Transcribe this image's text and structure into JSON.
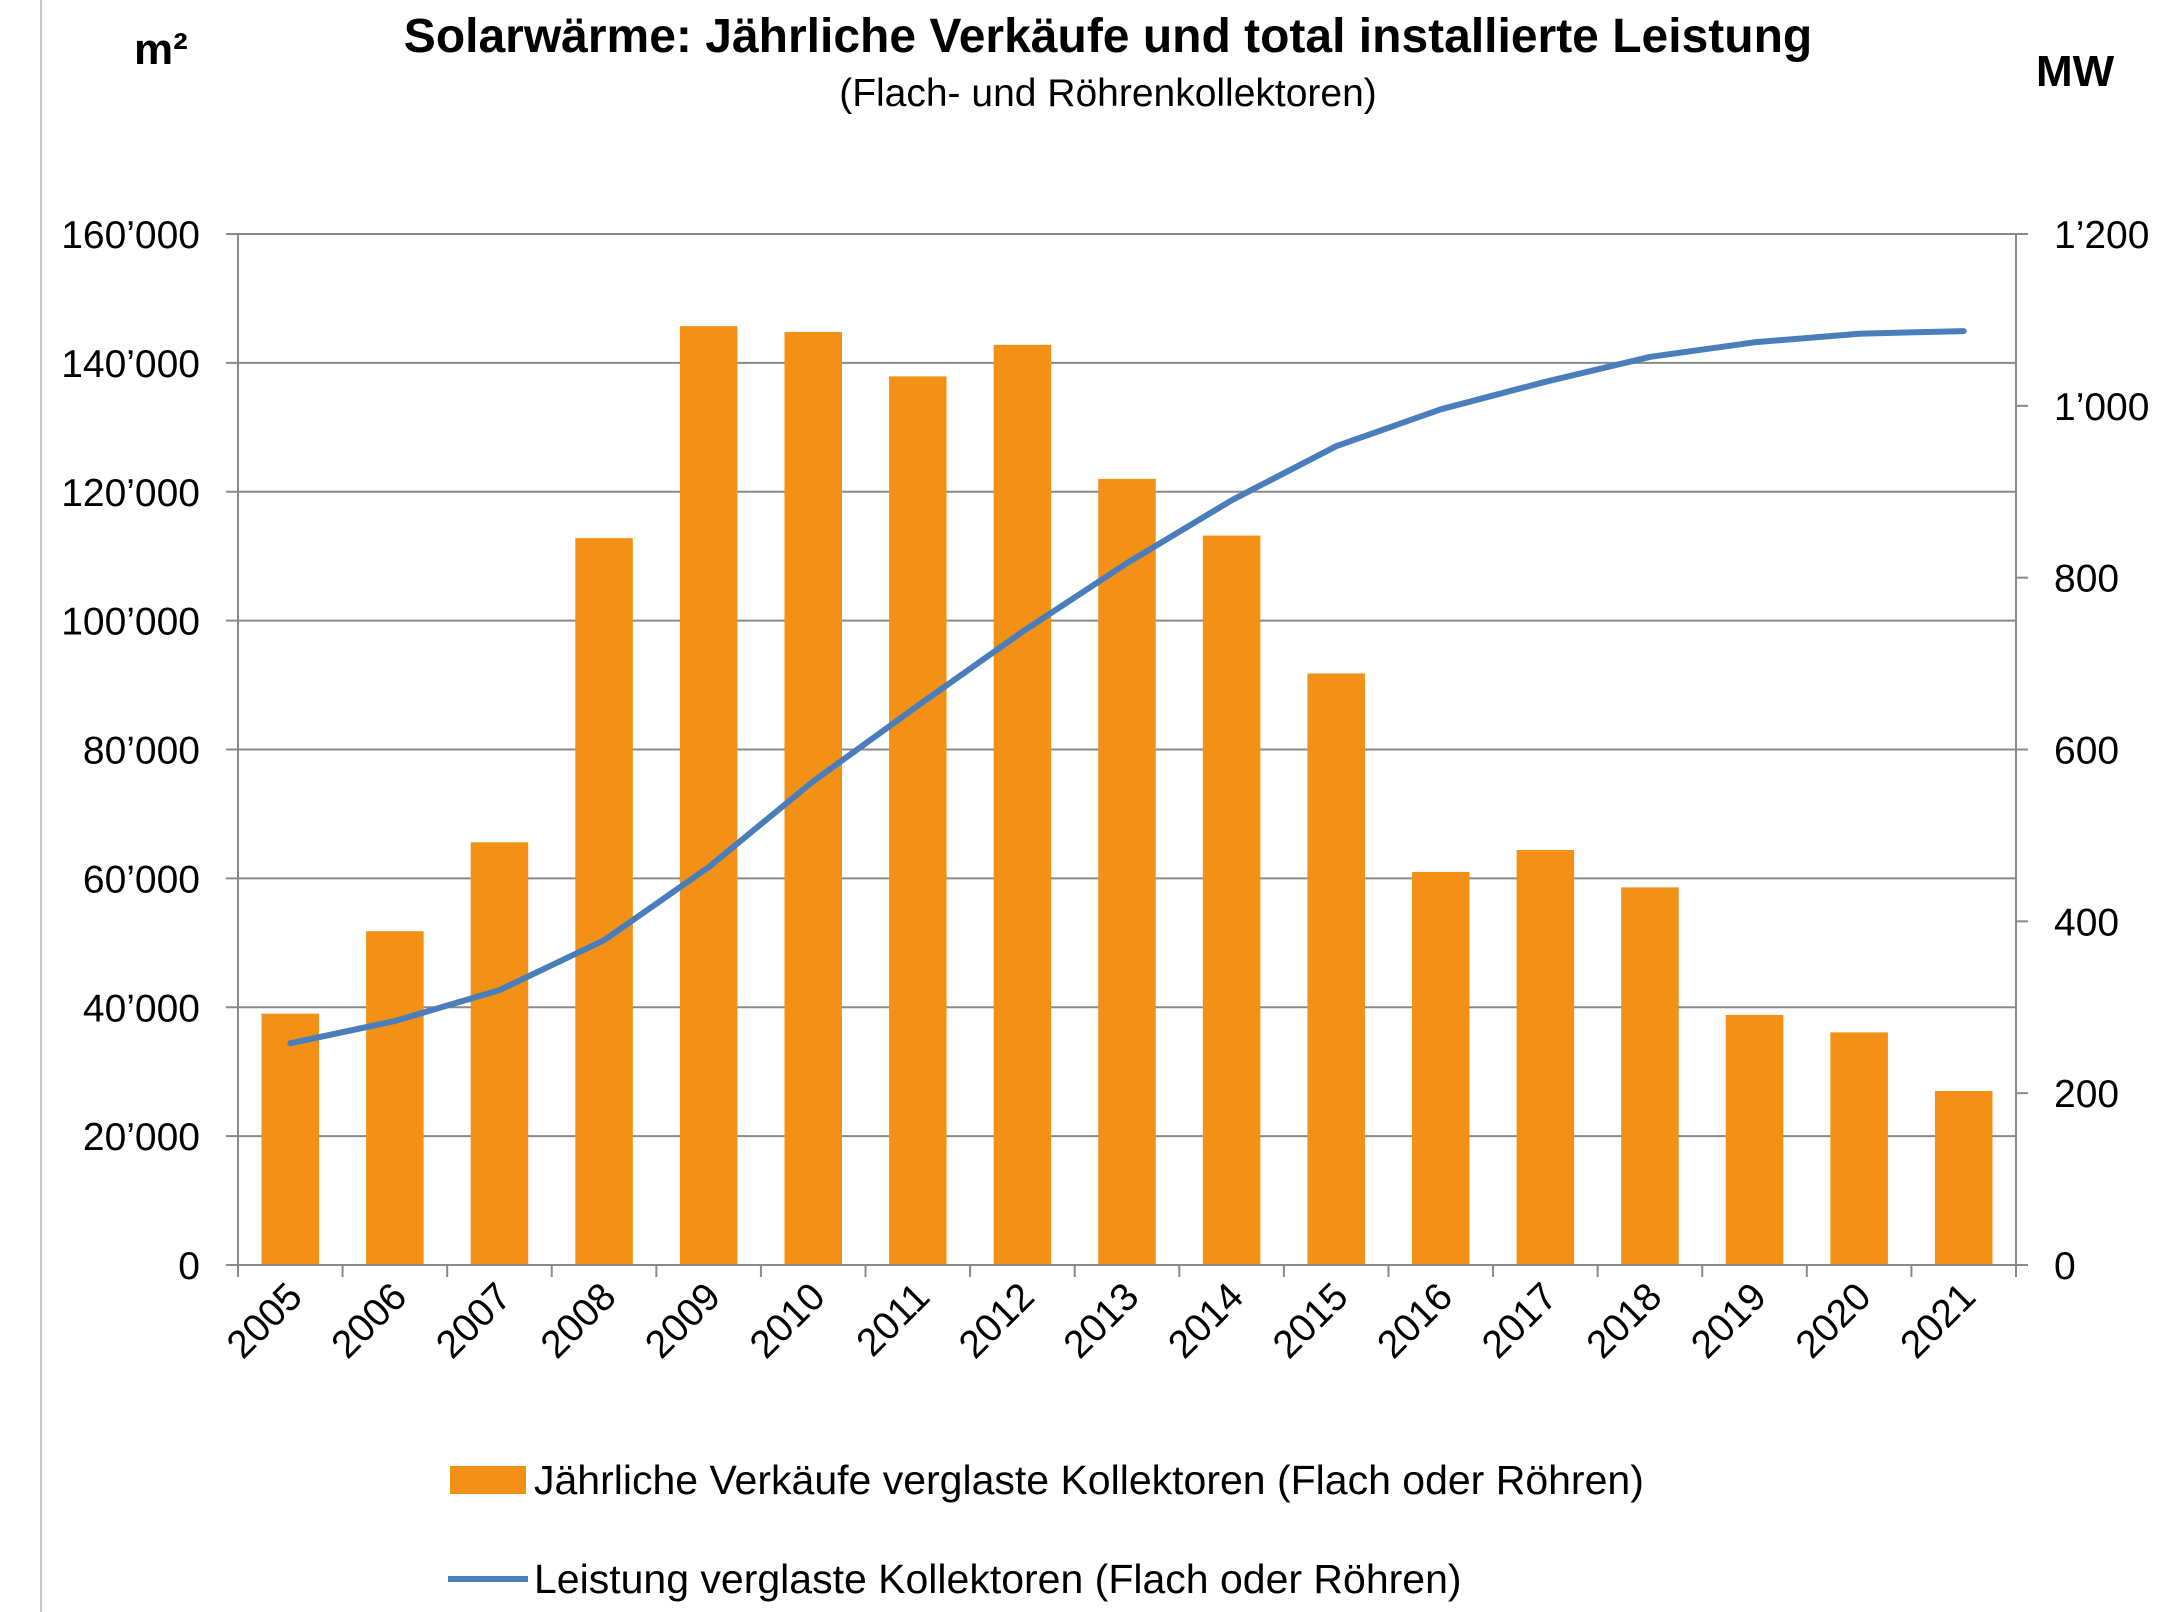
{
  "chart_data": {
    "type": "bar",
    "title": "Solarwärme: Jährliche Verkäufe und total installierte Leistung",
    "subtitle": "(Flach- und Röhrenkollektoren)",
    "y_left_unit": "m²",
    "y_right_unit": "MW",
    "categories": [
      "2005",
      "2006",
      "2007",
      "2008",
      "2009",
      "2010",
      "2011",
      "2012",
      "2013",
      "2014",
      "2015",
      "2016",
      "2017",
      "2018",
      "2019",
      "2020",
      "2021"
    ],
    "y_left_ticks": [
      "0",
      "20’000",
      "40’000",
      "60’000",
      "80’000",
      "100’000",
      "120’000",
      "140’000",
      "160’000"
    ],
    "y_right_ticks": [
      "0",
      "200",
      "400",
      "600",
      "800",
      "1’000",
      "1’200"
    ],
    "ylim_left": [
      0,
      160000
    ],
    "ylim_right": [
      0,
      1200
    ],
    "grid": true,
    "legend_position": "bottom",
    "series": [
      {
        "name": "Jährliche Verkäufe verglaste Kollektoren (Flach oder Röhren)",
        "type": "bar",
        "axis": "left",
        "color": "#F39016",
        "values": [
          39000,
          51800,
          65600,
          112800,
          145700,
          144800,
          137900,
          142800,
          122000,
          113200,
          91800,
          61000,
          64400,
          58600,
          38800,
          36100,
          27000
        ]
      },
      {
        "name": "Leistung verglaste Kollektoren (Flach oder Röhren)",
        "type": "line",
        "axis": "right",
        "color": "#4A7EBB",
        "values": [
          258,
          284,
          320,
          378,
          463,
          563,
          651,
          737,
          817,
          890,
          953,
          996,
          1028,
          1057,
          1074,
          1084,
          1087
        ]
      }
    ]
  }
}
